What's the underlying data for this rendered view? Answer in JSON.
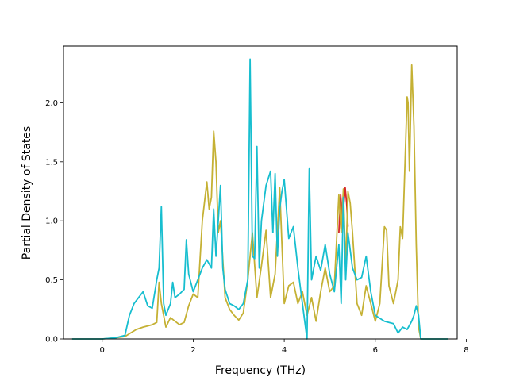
{
  "chart_data": {
    "type": "line",
    "title": "",
    "xlabel": "Frequency (THz)",
    "ylabel": "Partial Density of States",
    "xlim": [
      -0.85,
      7.8
    ],
    "ylim": [
      0,
      2.48
    ],
    "xticks": [
      0,
      2,
      4,
      6,
      8
    ],
    "yticks": [
      0.0,
      0.5,
      1.0,
      1.5,
      2.0
    ],
    "xtick_labels": [
      "0",
      "2",
      "4",
      "6",
      "8"
    ],
    "ytick_labels": [
      "0.0",
      "0.5",
      "1.0",
      "1.5",
      "2.0"
    ],
    "grid": false,
    "legend": "none",
    "series": [
      {
        "color": "#d62728",
        "x": [
          5.2,
          5.24,
          5.27,
          5.3,
          5.34,
          5.37,
          5.4
        ],
        "y": [
          0.9,
          1.22,
          1.05,
          1.1,
          1.28,
          1.15,
          0.95
        ]
      },
      {
        "color": "#c5b134",
        "x": [
          -0.66,
          0.0,
          0.3,
          0.5,
          0.62,
          0.75,
          0.9,
          1.0,
          1.1,
          1.2,
          1.25,
          1.3,
          1.4,
          1.5,
          1.6,
          1.7,
          1.8,
          1.9,
          2.0,
          2.1,
          2.2,
          2.3,
          2.35,
          2.4,
          2.45,
          2.5,
          2.55,
          2.6,
          2.7,
          2.8,
          2.9,
          3.0,
          3.1,
          3.2,
          3.3,
          3.4,
          3.5,
          3.6,
          3.7,
          3.8,
          3.9,
          4.0,
          4.1,
          4.2,
          4.3,
          4.4,
          4.5,
          4.6,
          4.7,
          4.8,
          4.9,
          5.0,
          5.1,
          5.2,
          5.25,
          5.3,
          5.35,
          5.4,
          5.45,
          5.5,
          5.6,
          5.7,
          5.8,
          5.9,
          6.0,
          6.1,
          6.2,
          6.25,
          6.3,
          6.4,
          6.5,
          6.55,
          6.6,
          6.7,
          6.72,
          6.75,
          6.8,
          6.85,
          6.9,
          6.95,
          7.0,
          7.6
        ],
        "y": [
          0.0,
          0.0,
          0.01,
          0.02,
          0.05,
          0.08,
          0.1,
          0.11,
          0.12,
          0.14,
          0.48,
          0.3,
          0.1,
          0.18,
          0.15,
          0.12,
          0.14,
          0.28,
          0.38,
          0.35,
          1.0,
          1.33,
          1.1,
          1.2,
          1.76,
          1.5,
          0.9,
          1.0,
          0.35,
          0.25,
          0.2,
          0.16,
          0.22,
          0.5,
          0.9,
          0.35,
          0.62,
          0.92,
          0.35,
          0.55,
          1.28,
          0.3,
          0.45,
          0.48,
          0.3,
          0.4,
          0.2,
          0.35,
          0.15,
          0.4,
          0.6,
          0.4,
          0.45,
          1.22,
          0.9,
          1.27,
          0.6,
          1.25,
          1.15,
          0.9,
          0.3,
          0.2,
          0.45,
          0.3,
          0.15,
          0.3,
          0.95,
          0.92,
          0.45,
          0.3,
          0.5,
          0.95,
          0.85,
          2.05,
          2.0,
          1.42,
          2.32,
          1.8,
          0.8,
          0.1,
          0.0,
          0.0
        ]
      },
      {
        "color": "#17becf",
        "x": [
          -0.66,
          0.0,
          0.3,
          0.5,
          0.6,
          0.7,
          0.8,
          0.9,
          1.0,
          1.1,
          1.2,
          1.25,
          1.3,
          1.35,
          1.4,
          1.5,
          1.55,
          1.6,
          1.7,
          1.8,
          1.85,
          1.9,
          2.0,
          2.1,
          2.2,
          2.3,
          2.4,
          2.45,
          2.5,
          2.55,
          2.6,
          2.65,
          2.7,
          2.8,
          2.9,
          3.0,
          3.1,
          3.2,
          3.25,
          3.3,
          3.35,
          3.4,
          3.45,
          3.5,
          3.6,
          3.7,
          3.75,
          3.8,
          3.85,
          3.9,
          3.95,
          4.0,
          4.1,
          4.2,
          4.3,
          4.4,
          4.5,
          4.55,
          4.6,
          4.7,
          4.8,
          4.9,
          5.0,
          5.1,
          5.2,
          5.25,
          5.3,
          5.35,
          5.4,
          5.5,
          5.6,
          5.7,
          5.8,
          5.9,
          6.0,
          6.2,
          6.4,
          6.5,
          6.6,
          6.7,
          6.8,
          6.85,
          6.9,
          6.95,
          7.0,
          7.6
        ],
        "y": [
          0.0,
          0.0,
          0.01,
          0.03,
          0.2,
          0.3,
          0.35,
          0.4,
          0.28,
          0.26,
          0.5,
          0.6,
          1.12,
          0.3,
          0.2,
          0.3,
          0.48,
          0.35,
          0.38,
          0.42,
          0.84,
          0.55,
          0.4,
          0.5,
          0.6,
          0.67,
          0.6,
          1.1,
          0.7,
          1.0,
          1.3,
          0.6,
          0.42,
          0.3,
          0.28,
          0.25,
          0.3,
          0.5,
          2.37,
          0.7,
          0.68,
          1.63,
          0.6,
          1.0,
          1.3,
          1.42,
          0.9,
          1.4,
          0.7,
          1.1,
          1.25,
          1.35,
          0.85,
          0.95,
          0.6,
          0.3,
          0.0,
          1.44,
          0.5,
          0.7,
          0.58,
          0.8,
          0.55,
          0.4,
          0.8,
          0.3,
          1.2,
          0.5,
          0.9,
          0.6,
          0.5,
          0.52,
          0.7,
          0.4,
          0.2,
          0.15,
          0.13,
          0.05,
          0.1,
          0.08,
          0.15,
          0.2,
          0.28,
          0.2,
          0.0,
          0.0
        ]
      }
    ]
  }
}
